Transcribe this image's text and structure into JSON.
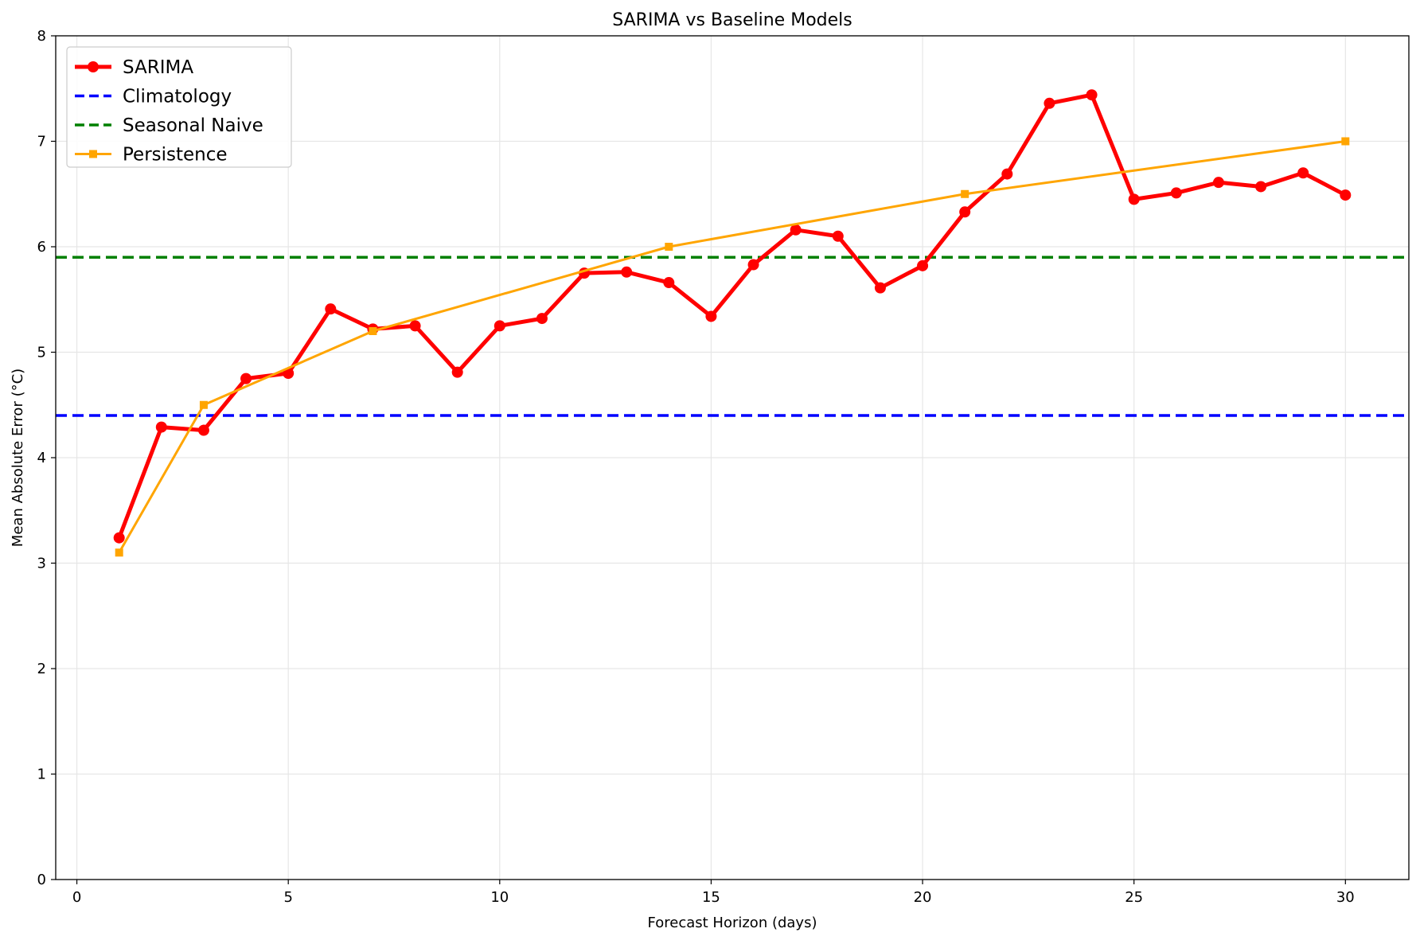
{
  "chart_data": {
    "type": "line",
    "title": "SARIMA vs Baseline Models",
    "xlabel": "Forecast Horizon (days)",
    "ylabel": "Mean Absolute Error (°C)",
    "xlim": [
      -0.5,
      31.5
    ],
    "ylim": [
      0,
      8
    ],
    "xticks": [
      0,
      5,
      10,
      15,
      20,
      25,
      30
    ],
    "yticks": [
      0,
      1,
      2,
      3,
      4,
      5,
      6,
      7,
      8
    ],
    "grid": true,
    "legend_position": "top-left",
    "series": [
      {
        "name": "SARIMA",
        "color": "#ff0000",
        "style": "solid",
        "marker": "circle",
        "x": [
          1,
          2,
          3,
          4,
          5,
          6,
          7,
          8,
          9,
          10,
          11,
          12,
          13,
          14,
          15,
          16,
          17,
          18,
          19,
          20,
          21,
          22,
          23,
          24,
          25,
          26,
          27,
          28,
          29,
          30
        ],
        "y": [
          3.24,
          4.29,
          4.26,
          4.75,
          4.8,
          5.41,
          5.22,
          5.25,
          4.81,
          5.25,
          5.32,
          5.75,
          5.76,
          5.66,
          5.34,
          5.83,
          6.16,
          6.1,
          5.61,
          5.82,
          6.33,
          6.69,
          7.36,
          7.44,
          6.45,
          6.51,
          6.61,
          6.57,
          6.7,
          6.49
        ]
      },
      {
        "name": "Climatology",
        "color": "#0000ff",
        "style": "dashed",
        "marker": "none",
        "constant": 4.4
      },
      {
        "name": "Seasonal Naive",
        "color": "#008000",
        "style": "dashed",
        "marker": "none",
        "constant": 5.9
      },
      {
        "name": "Persistence",
        "color": "#ffa500",
        "style": "solid",
        "marker": "square",
        "x": [
          1,
          3,
          7,
          14,
          21,
          30
        ],
        "y": [
          3.1,
          4.5,
          5.2,
          6.0,
          6.5,
          7.0
        ]
      }
    ]
  }
}
